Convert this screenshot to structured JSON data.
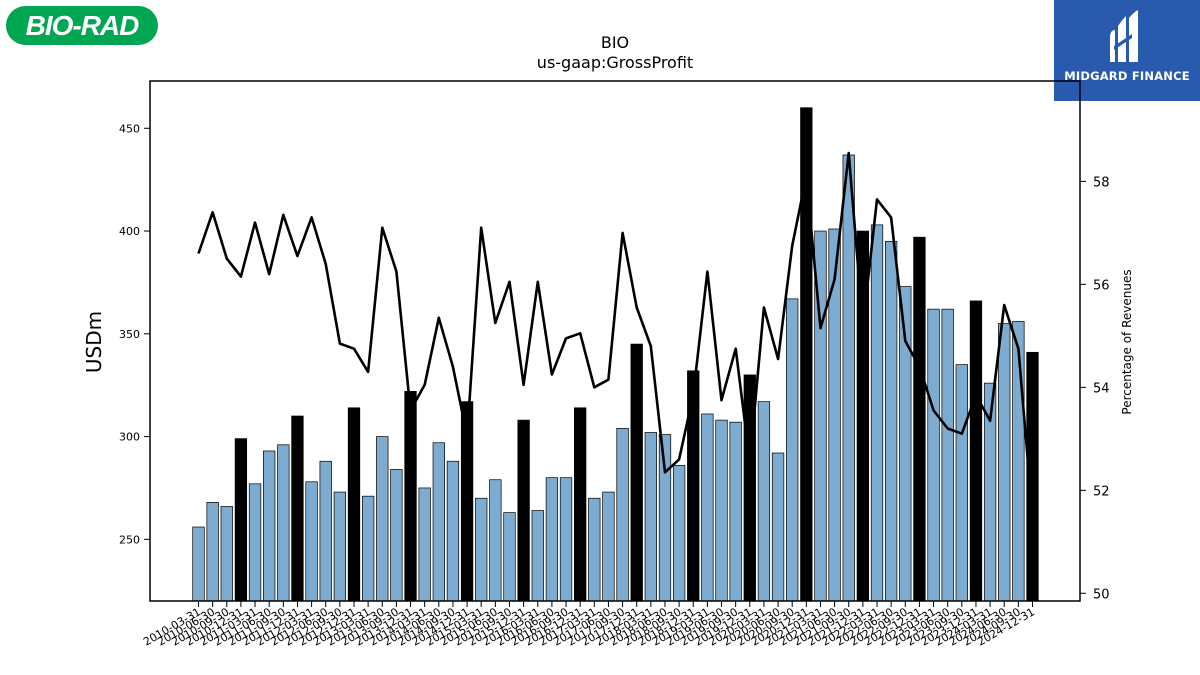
{
  "branding": {
    "left_logo_text": "BIO-RAD",
    "left_logo_color": "#00a651",
    "right_logo_text": "MIDGARD FINANCE",
    "right_logo_color": "#2a5aad"
  },
  "chart_data": {
    "type": "bar",
    "title": "BIO",
    "subtitle": "us-gaap:GrossProfit",
    "ylabel": "USDm",
    "y2label": "Percentage of Revenues",
    "ylim": [
      220,
      473
    ],
    "y2lim": [
      49.85,
      59.95
    ],
    "yticks": [
      250,
      300,
      350,
      400,
      450
    ],
    "y2ticks": [
      50,
      52,
      54,
      56,
      58
    ],
    "bar_color": "#7eabd0",
    "annual_bar_color": "#000000",
    "line_color": "#000000",
    "categories": [
      "2010-03-31",
      "2010-06-30",
      "2010-09-30",
      "2010-12-31",
      "2011-03-31",
      "2011-06-30",
      "2011-09-30",
      "2011-12-31",
      "2012-03-31",
      "2012-06-30",
      "2012-09-30",
      "2012-12-31",
      "2013-03-31",
      "2013-06-30",
      "2013-09-30",
      "2013-12-31",
      "2014-03-31",
      "2014-06-30",
      "2014-09-30",
      "2014-12-31",
      "2015-03-31",
      "2015-06-30",
      "2015-09-30",
      "2015-12-31",
      "2016-03-31",
      "2016-06-30",
      "2016-09-30",
      "2016-12-31",
      "2017-03-31",
      "2017-06-30",
      "2017-09-30",
      "2017-12-31",
      "2018-03-31",
      "2018-06-30",
      "2018-09-30",
      "2018-12-31",
      "2019-03-31",
      "2019-06-30",
      "2019-09-30",
      "2019-12-31",
      "2020-03-31",
      "2020-06-30",
      "2020-09-30",
      "2020-12-31",
      "2021-03-31",
      "2021-06-30",
      "2021-09-30",
      "2021-12-31",
      "2022-03-31",
      "2022-06-30",
      "2022-09-30",
      "2022-12-31",
      "2023-03-31",
      "2023-06-30",
      "2023-09-30",
      "2023-12-31",
      "2024-03-31",
      "2024-06-30",
      "2024-09-30",
      "2024-12-31"
    ],
    "x_tick_labels": [
      "2010-03-31",
      "2010-06-30",
      "2010-09-30",
      "2010-12-31",
      "2011-03-31",
      "2011-06-30",
      "2011-09-30",
      "2011-12-31",
      "2012-03-31",
      "2012-06-30",
      "2012-09-30",
      "2012-12-31",
      "2013-03-31",
      "2013-06-30",
      "2013-09-30",
      "2013-12-31",
      "2014-03-31",
      "2014-06-30",
      "2014-09-30",
      "2014-12-31",
      "2015-03-31",
      "2015-06-30",
      "2015-09-30",
      "2015-12-31",
      "2016-03-31",
      "2016-06-30",
      "2016-09-30",
      "2016-12-31",
      "2017-03-31",
      "2017-06-30",
      "2017-09-30",
      "2017-12-31",
      "2018-03-31",
      "2018-06-30",
      "2018-09-30",
      "2018-12-31",
      "2019-03-31",
      "2019-06-30",
      "2019-09-30",
      "2019-12-31",
      "2020-03-31",
      "2020-06-30",
      "2020-09-30",
      "2020-12-31",
      "2021-03-31",
      "2021-06-30",
      "2021-09-30",
      "2021-12-31",
      "2022-03-31",
      "2022-06-30",
      "2022-09-30",
      "2022-12-31",
      "2023-03-31",
      "2023-06-30",
      "2023-09-30",
      "2023-12-31",
      "2024-03-31",
      "2024-06-30",
      "2024-09-30",
      "2024-12-31"
    ],
    "series": [
      {
        "axis": "left",
        "values": [
          256,
          268,
          266,
          299,
          277,
          293,
          296,
          310,
          278,
          288,
          273,
          314,
          271,
          300,
          284,
          322,
          275,
          297,
          288,
          317,
          270,
          279,
          263,
          308,
          264,
          280,
          280,
          314,
          270,
          273,
          304,
          345,
          302,
          301,
          286,
          332,
          311,
          308,
          307,
          330,
          317,
          292,
          367,
          460,
          400,
          401,
          437,
          400,
          403,
          395,
          373,
          397,
          362,
          362,
          335,
          366,
          326,
          355,
          356,
          341
        ],
        "annual_flags": [
          0,
          0,
          0,
          1,
          0,
          0,
          0,
          1,
          0,
          0,
          0,
          1,
          0,
          0,
          0,
          1,
          0,
          0,
          0,
          1,
          0,
          0,
          0,
          1,
          0,
          0,
          0,
          1,
          0,
          0,
          0,
          1,
          0,
          0,
          0,
          1,
          0,
          0,
          0,
          1,
          0,
          0,
          0,
          1,
          0,
          0,
          0,
          1,
          0,
          0,
          0,
          1,
          0,
          0,
          0,
          1,
          0,
          0,
          0,
          1
        ]
      },
      {
        "axis": "right",
        "type": "line",
        "values": [
          56.6,
          57.4,
          56.5,
          56.15,
          57.2,
          56.2,
          57.35,
          56.55,
          57.3,
          56.4,
          54.85,
          54.75,
          54.3,
          57.1,
          56.25,
          53.55,
          54.05,
          55.35,
          54.4,
          53.05,
          57.1,
          55.25,
          56.05,
          54.05,
          56.05,
          54.25,
          54.95,
          55.05,
          54.0,
          54.15,
          57.0,
          55.55,
          54.8,
          52.35,
          52.6,
          53.85,
          56.25,
          53.75,
          54.75,
          52.55,
          55.55,
          54.55,
          56.75,
          58.1,
          55.15,
          56.1,
          58.55,
          55.2,
          57.65,
          57.3,
          54.9,
          54.4,
          53.55,
          53.2,
          53.1,
          53.85,
          53.35,
          55.6,
          54.75,
          51.5
        ]
      }
    ]
  }
}
